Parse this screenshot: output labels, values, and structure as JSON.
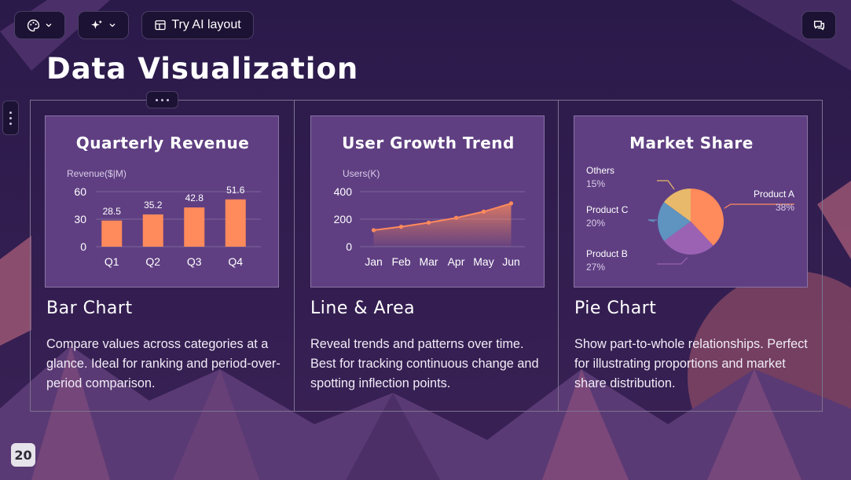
{
  "toolbar": {
    "theme_icon": "palette-icon",
    "ai_icon": "sparkle-icon",
    "ai_layout_label": "Try AI layout",
    "layout_icon": "layout-icon",
    "comment_icon": "comment-icon"
  },
  "slide": {
    "title": "Data Visualization",
    "page_number": "20"
  },
  "columns": [
    {
      "heading": "Bar Chart",
      "description": "Compare values across categories at a glance. Ideal for ranking and period-over-period comparison."
    },
    {
      "heading": "Line & Area",
      "description": "Reveal trends and patterns over time. Best for tracking continuous change and spotting inflection points."
    },
    {
      "heading": "Pie Chart",
      "description": "Show part-to-whole relationships. Perfect for illustrating proportions and market share distribution."
    }
  ],
  "colors": {
    "accent": "#ff8a5c",
    "card": "#5f3f82",
    "pie_product_a": "#ff8a5c",
    "pie_product_b": "#9b62b4",
    "pie_product_c": "#5f93c0",
    "pie_others": "#e8b96a"
  },
  "chart_data": [
    {
      "type": "bar",
      "title": "Quarterly Revenue",
      "ylabel": "Revenue($|M)",
      "categories": [
        "Q1",
        "Q2",
        "Q3",
        "Q4"
      ],
      "values": [
        28.5,
        35.2,
        42.8,
        51.6
      ],
      "data_labels": [
        "28.5",
        "35.2",
        "42.8",
        "51.6"
      ],
      "yticks": [
        "0",
        "30",
        "60"
      ],
      "ylim": [
        0,
        60
      ],
      "grid": true
    },
    {
      "type": "area",
      "title": "User Growth Trend",
      "ylabel": "Users(K)",
      "categories": [
        "Jan",
        "Feb",
        "Mar",
        "Apr",
        "May",
        "Jun"
      ],
      "values": [
        120,
        145,
        175,
        210,
        255,
        315
      ],
      "yticks": [
        "0",
        "200",
        "400"
      ],
      "ylim": [
        0,
        400
      ],
      "grid": true
    },
    {
      "type": "pie",
      "title": "Market Share",
      "slices": [
        {
          "label": "Product A",
          "percent_label": "38%",
          "value": 38
        },
        {
          "label": "Product B",
          "percent_label": "27%",
          "value": 27
        },
        {
          "label": "Product C",
          "percent_label": "20%",
          "value": 20
        },
        {
          "label": "Others",
          "percent_label": "15%",
          "value": 15
        }
      ]
    }
  ]
}
